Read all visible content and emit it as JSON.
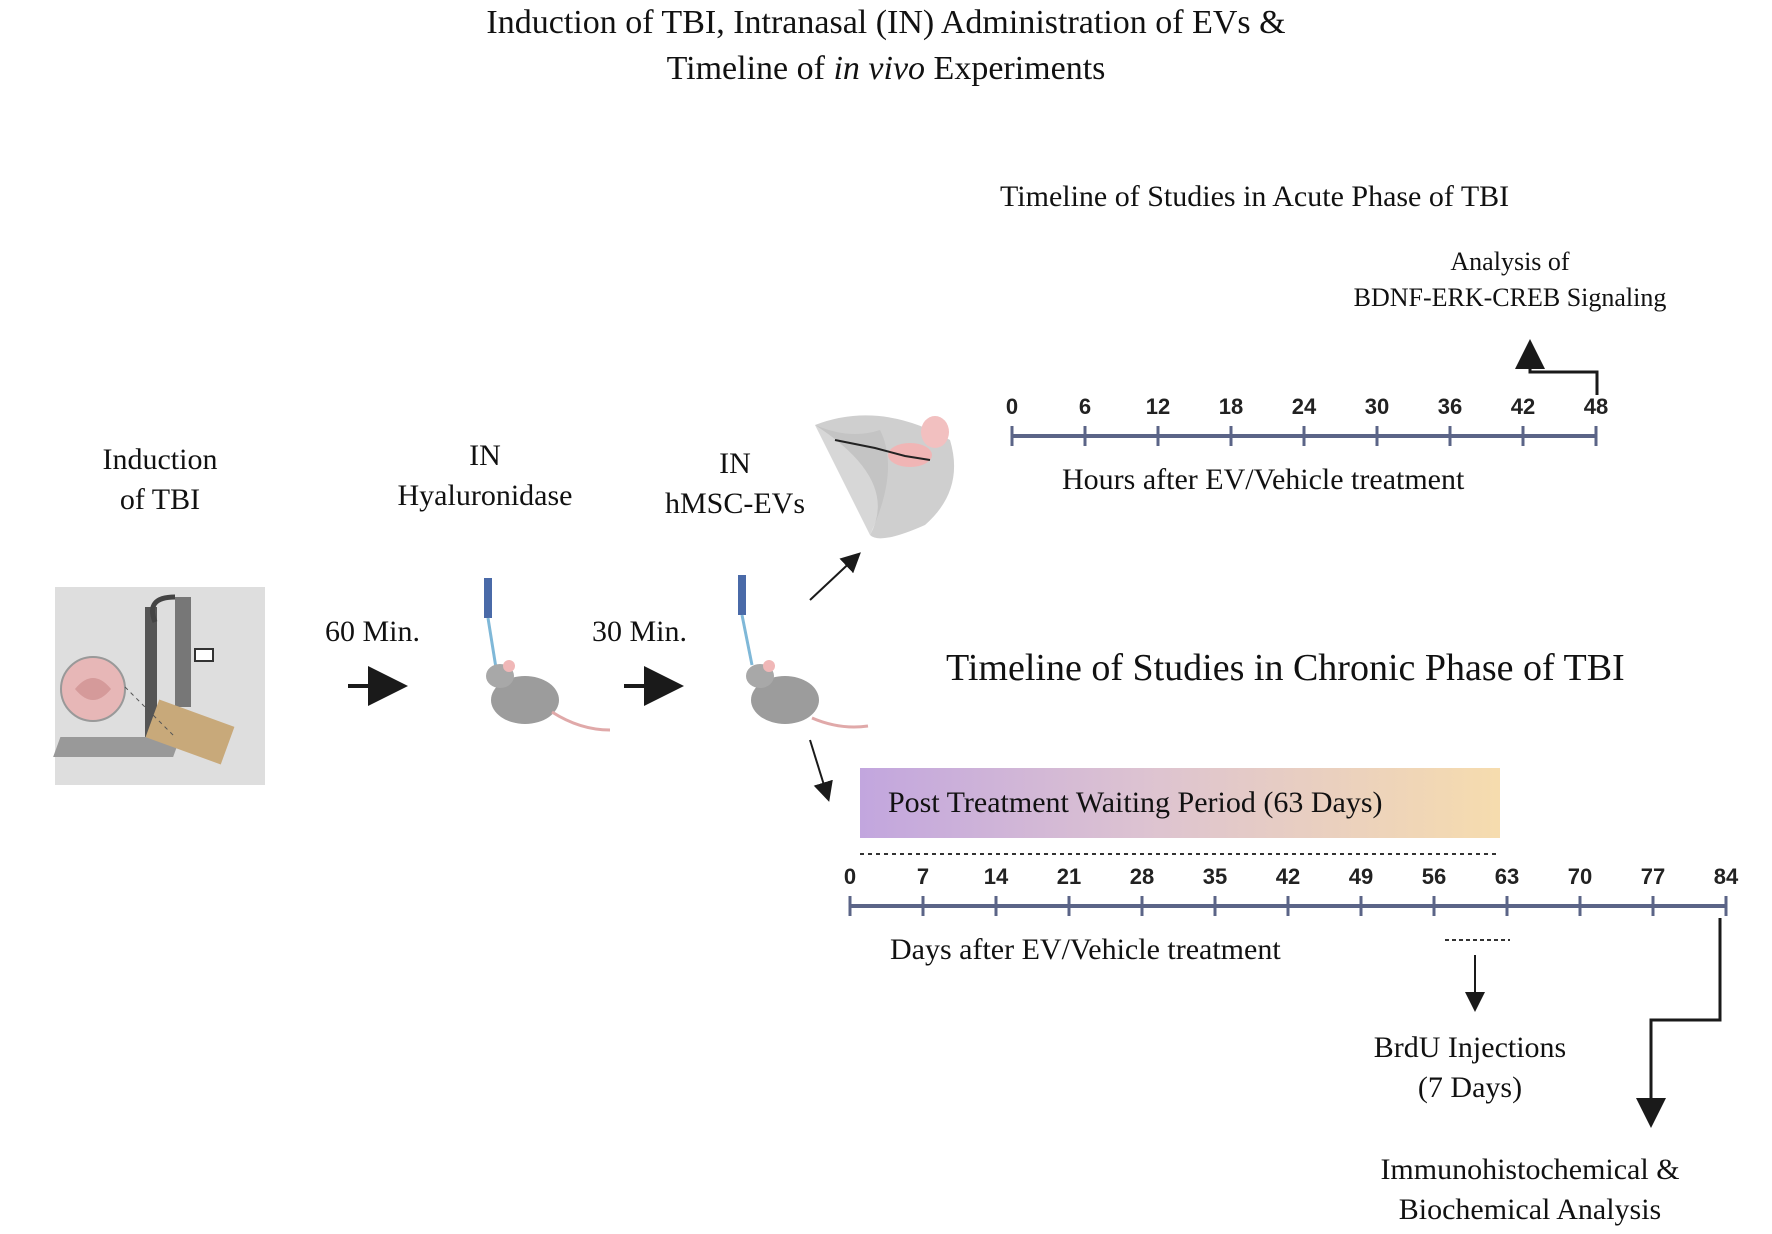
{
  "title": {
    "line1": "Induction of TBI, Intranasal (IN) Administration of EVs &",
    "line2_pre": "Timeline of ",
    "line2_italic": "in vivo",
    "line2_post": " Experiments"
  },
  "steps": {
    "induction": {
      "line1": "Induction",
      "line2": "of  TBI"
    },
    "hyaluronidase": {
      "line1": "IN",
      "line2": "Hyaluronidase"
    },
    "evs": {
      "line1": "IN",
      "line2": "hMSC-EVs"
    },
    "interval1": "60 Min.",
    "interval2": "30 Min."
  },
  "acute": {
    "heading": "Timeline  of Studies in Acute Phase of TBI",
    "analysis_line1": "Analysis of",
    "analysis_line2": "BDNF-ERK-CREB Signaling",
    "axis_label": "Hours after EV/Vehicle treatment",
    "ticks": [
      "0",
      "6",
      "12",
      "18",
      "24",
      "30",
      "36",
      "42",
      "48"
    ]
  },
  "chronic": {
    "heading": "Timeline of Studies in Chronic Phase of TBI",
    "waiting_period": "Post Treatment Waiting Period  (63 Days)",
    "axis_label": "Days after EV/Vehicle treatment",
    "ticks": [
      "0",
      "7",
      "14",
      "21",
      "28",
      "35",
      "42",
      "49",
      "56",
      "63",
      "70",
      "77",
      "84"
    ],
    "brdu_line1": "BrdU Injections",
    "brdu_line2": "(7 Days)",
    "final_line1": "Immunohistochemical &",
    "final_line2": "Biochemical Analysis"
  },
  "colors": {
    "axis": "#5b6487",
    "gradient_start": "#c2a6de",
    "gradient_end": "#f6dcae",
    "arrow": "#1a1a1a"
  }
}
